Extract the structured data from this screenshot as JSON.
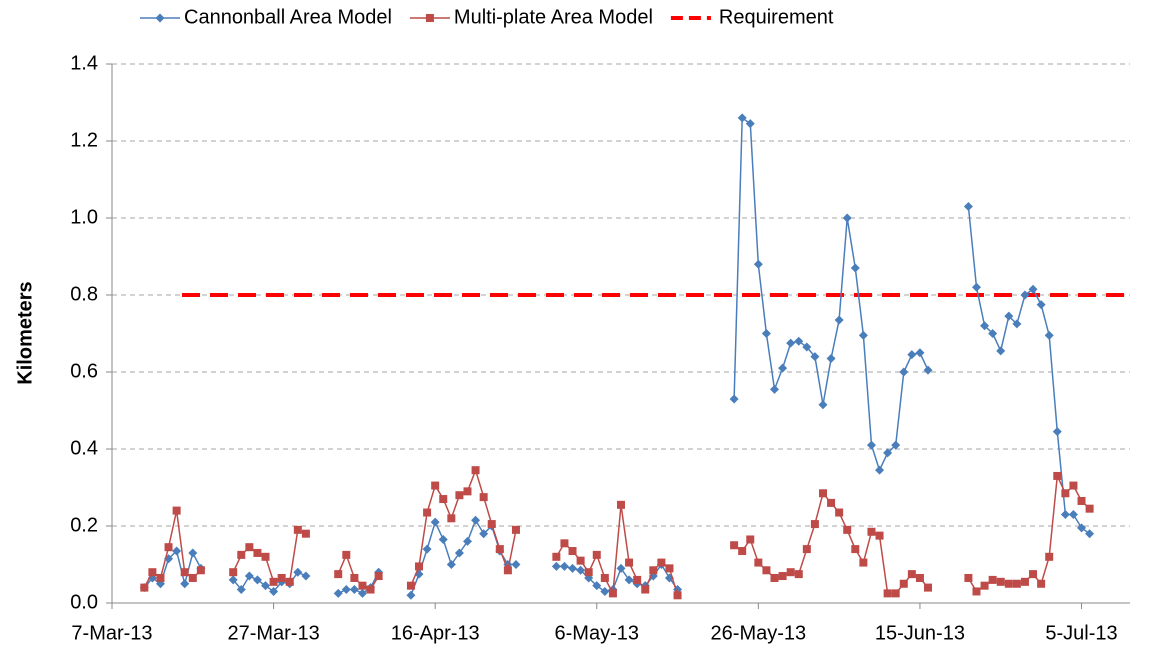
{
  "chart_data": {
    "type": "line",
    "y_label": "Kilometers",
    "x": [
      "2013-03-11",
      "2013-03-12",
      "2013-03-13",
      "2013-03-14",
      "2013-03-15",
      "2013-03-16",
      "2013-03-17",
      "2013-03-18",
      "2013-03-20",
      "2013-03-22",
      "2013-03-23",
      "2013-03-24",
      "2013-03-25",
      "2013-03-26",
      "2013-03-27",
      "2013-03-28",
      "2013-03-29",
      "2013-03-30",
      "2013-03-31",
      "2013-04-02",
      "2013-04-04",
      "2013-04-05",
      "2013-04-06",
      "2013-04-07",
      "2013-04-08",
      "2013-04-09",
      "2013-04-11",
      "2013-04-13",
      "2013-04-14",
      "2013-04-15",
      "2013-04-16",
      "2013-04-17",
      "2013-04-18",
      "2013-04-19",
      "2013-04-20",
      "2013-04-21",
      "2013-04-22",
      "2013-04-23",
      "2013-04-24",
      "2013-04-25",
      "2013-04-26",
      "2013-04-28",
      "2013-05-01",
      "2013-05-02",
      "2013-05-03",
      "2013-05-04",
      "2013-05-05",
      "2013-05-06",
      "2013-05-07",
      "2013-05-08",
      "2013-05-09",
      "2013-05-10",
      "2013-05-11",
      "2013-05-12",
      "2013-05-13",
      "2013-05-14",
      "2013-05-15",
      "2013-05-16",
      "2013-05-19",
      "2013-05-23",
      "2013-05-24",
      "2013-05-25",
      "2013-05-26",
      "2013-05-27",
      "2013-05-28",
      "2013-05-29",
      "2013-05-30",
      "2013-05-31",
      "2013-06-01",
      "2013-06-02",
      "2013-06-03",
      "2013-06-04",
      "2013-06-05",
      "2013-06-06",
      "2013-06-07",
      "2013-06-08",
      "2013-06-09",
      "2013-06-10",
      "2013-06-11",
      "2013-06-12",
      "2013-06-13",
      "2013-06-14",
      "2013-06-15",
      "2013-06-16",
      "2013-06-19",
      "2013-06-21",
      "2013-06-22",
      "2013-06-23",
      "2013-06-24",
      "2013-06-25",
      "2013-06-26",
      "2013-06-27",
      "2013-06-28",
      "2013-06-29",
      "2013-06-30",
      "2013-07-01",
      "2013-07-02",
      "2013-07-03",
      "2013-07-04",
      "2013-07-05",
      "2013-07-06"
    ],
    "series": [
      {
        "name": "Cannonball Area Model",
        "color": "#4a7ebb",
        "marker": "diamond",
        "values": [
          0.04,
          0.065,
          0.05,
          0.115,
          0.135,
          0.05,
          0.13,
          0.09,
          null,
          0.06,
          0.035,
          0.07,
          0.06,
          0.045,
          0.03,
          0.055,
          0.05,
          0.08,
          0.07,
          null,
          0.025,
          0.035,
          0.035,
          0.025,
          0.04,
          0.08,
          null,
          0.02,
          0.075,
          0.14,
          0.21,
          0.165,
          0.1,
          0.13,
          0.16,
          0.215,
          0.18,
          0.2,
          0.135,
          0.1,
          0.1,
          null,
          0.095,
          0.095,
          0.09,
          0.085,
          0.065,
          0.045,
          0.03,
          0.035,
          0.09,
          0.06,
          0.05,
          0.045,
          0.07,
          0.1,
          0.065,
          0.035,
          null,
          0.53,
          1.26,
          1.245,
          0.88,
          0.7,
          0.555,
          0.61,
          0.675,
          0.68,
          0.665,
          0.64,
          0.515,
          0.635,
          0.735,
          1.0,
          0.87,
          0.695,
          0.41,
          0.345,
          0.39,
          0.41,
          0.6,
          0.645,
          0.65,
          0.605,
          null,
          1.03,
          0.82,
          0.72,
          0.7,
          0.655,
          0.745,
          0.725,
          0.8,
          0.815,
          0.775,
          0.695,
          0.445,
          0.23,
          0.23,
          0.195,
          0.18
        ]
      },
      {
        "name": "Multi-plate Area Model",
        "color": "#be4b48",
        "marker": "square",
        "values": [
          0.04,
          0.08,
          0.065,
          0.145,
          0.24,
          0.08,
          0.065,
          0.085,
          null,
          0.08,
          0.125,
          0.145,
          0.13,
          0.12,
          0.055,
          0.065,
          0.055,
          0.19,
          0.18,
          null,
          0.075,
          0.125,
          0.065,
          0.045,
          0.035,
          0.07,
          null,
          0.045,
          0.095,
          0.235,
          0.305,
          0.27,
          0.22,
          0.28,
          0.29,
          0.345,
          0.275,
          0.205,
          0.14,
          0.085,
          0.19,
          null,
          0.12,
          0.155,
          0.135,
          0.11,
          0.08,
          0.125,
          0.065,
          0.025,
          0.255,
          0.105,
          0.06,
          0.035,
          0.085,
          0.105,
          0.09,
          0.02,
          null,
          0.15,
          0.135,
          0.165,
          0.105,
          0.085,
          0.065,
          0.07,
          0.08,
          0.075,
          0.14,
          0.205,
          0.285,
          0.26,
          0.235,
          0.19,
          0.14,
          0.105,
          0.185,
          0.175,
          0.025,
          0.025,
          0.05,
          0.075,
          0.065,
          0.04,
          null,
          0.065,
          0.03,
          0.045,
          0.06,
          0.055,
          0.05,
          0.05,
          0.055,
          0.075,
          0.05,
          0.12,
          0.33,
          0.285,
          0.305,
          0.265,
          0.245
        ]
      }
    ],
    "reference": {
      "name": "Requirement",
      "value": 0.8,
      "color": "#ff0000"
    },
    "xlim": [
      "2013-03-07",
      "2013-07-11"
    ],
    "xticks": [
      {
        "value": "2013-03-07",
        "label": "7-Mar-13"
      },
      {
        "value": "2013-03-27",
        "label": "27-Mar-13"
      },
      {
        "value": "2013-04-16",
        "label": "16-Apr-13"
      },
      {
        "value": "2013-05-06",
        "label": "6-May-13"
      },
      {
        "value": "2013-05-26",
        "label": "26-May-13"
      },
      {
        "value": "2013-06-15",
        "label": "15-Jun-13"
      },
      {
        "value": "2013-07-05",
        "label": "5-Jul-13"
      }
    ],
    "ylim": [
      0,
      1.4
    ],
    "yticks": [
      {
        "value": 0,
        "label": "0.0"
      },
      0.2,
      0.4,
      0.6,
      0.8,
      {
        "value": 1,
        "label": "1.0"
      },
      1.2,
      1.4
    ],
    "grid": true,
    "legend": "top"
  }
}
